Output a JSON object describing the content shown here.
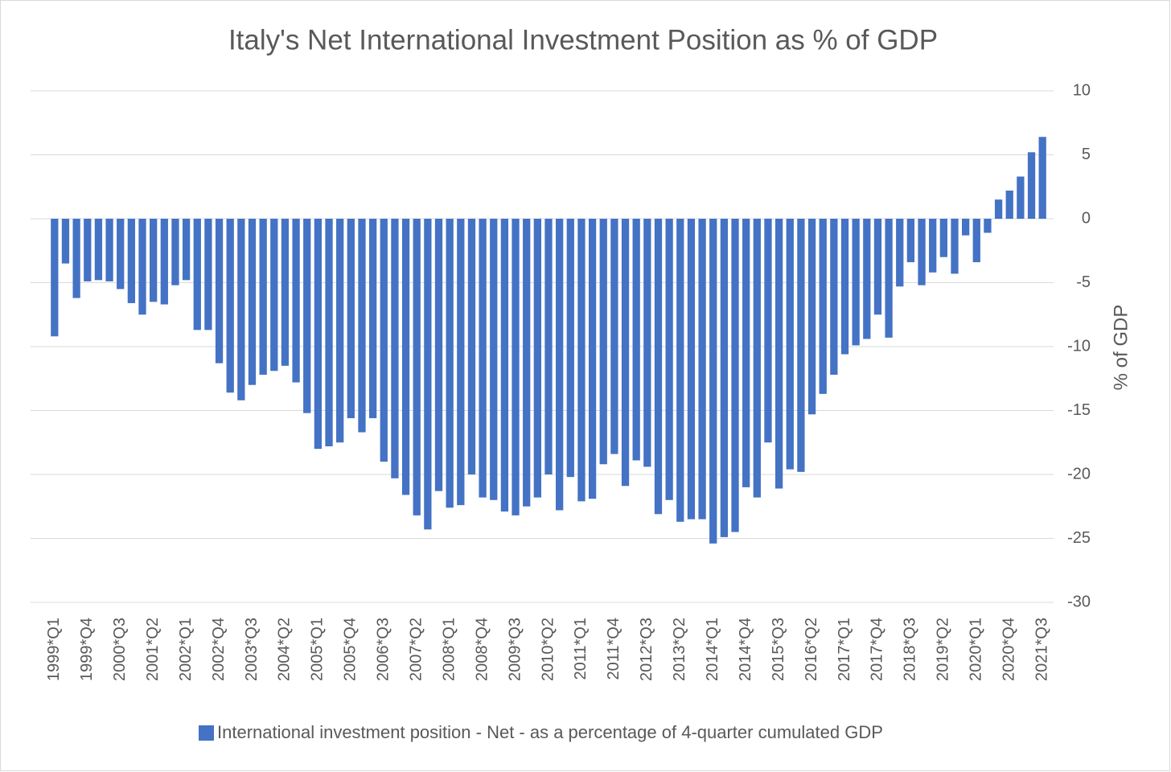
{
  "chart_data": {
    "type": "bar",
    "title": "Italy's Net International Investment Position as % of GDP",
    "y_label": "% of GDP",
    "legend": "International investment position - Net - as a percentage of 4-quarter cumulated GDP",
    "color": "#4472c4",
    "grid": true,
    "ylim": [
      -30,
      10
    ],
    "yticks": [
      -30,
      -25,
      -20,
      -15,
      -10,
      -5,
      0,
      5,
      10
    ],
    "categories": [
      "1999*Q1",
      null,
      null,
      "1999*Q4",
      null,
      null,
      "2000*Q3",
      null,
      null,
      "2001*Q2",
      null,
      null,
      "2002*Q1",
      null,
      null,
      "2002*Q4",
      null,
      null,
      "2003*Q3",
      null,
      null,
      "2004*Q2",
      null,
      null,
      "2005*Q1",
      null,
      null,
      "2005*Q4",
      null,
      null,
      "2006*Q3",
      null,
      null,
      "2007*Q2",
      null,
      null,
      "2008*Q1",
      null,
      null,
      "2008*Q4",
      null,
      null,
      "2009*Q3",
      null,
      null,
      "2010*Q2",
      null,
      null,
      "2011*Q1",
      null,
      null,
      "2011*Q4",
      null,
      null,
      "2012*Q3",
      null,
      null,
      "2013*Q2",
      null,
      null,
      "2014*Q1",
      null,
      null,
      "2014*Q4",
      null,
      null,
      "2015*Q3",
      null,
      null,
      "2016*Q2",
      null,
      null,
      "2017*Q1",
      null,
      null,
      "2017*Q4",
      null,
      null,
      "2018*Q3",
      null,
      null,
      "2019*Q2",
      null,
      null,
      "2020*Q1",
      null,
      null,
      "2020*Q4",
      null,
      null,
      "2021*Q3"
    ],
    "values": [
      -9.2,
      -3.5,
      -6.2,
      -4.9,
      -4.8,
      -4.9,
      -5.5,
      -6.6,
      -7.5,
      -6.5,
      -6.7,
      -5.2,
      -4.8,
      -8.7,
      -8.7,
      -11.3,
      -13.6,
      -14.2,
      -13.0,
      -12.2,
      -11.9,
      -11.5,
      -12.8,
      -15.2,
      -18.0,
      -17.8,
      -17.5,
      -15.6,
      -16.7,
      -15.6,
      -19.0,
      -20.3,
      -21.6,
      -23.2,
      -24.3,
      -21.3,
      -22.6,
      -22.4,
      -20.0,
      -21.8,
      -22.0,
      -22.9,
      -23.2,
      -22.5,
      -21.8,
      -20.0,
      -22.8,
      -20.2,
      -22.1,
      -21.9,
      -19.2,
      -18.4,
      -20.9,
      -18.9,
      -19.4,
      -23.1,
      -22.0,
      -23.7,
      -23.5,
      -23.5,
      -25.4,
      -24.9,
      -24.5,
      -21.0,
      -21.8,
      -17.5,
      -21.1,
      -19.6,
      -19.8,
      -15.3,
      -13.7,
      -12.2,
      -10.6,
      -9.9,
      -9.4,
      -7.5,
      -9.3,
      -5.3,
      -3.4,
      -5.2,
      -4.2,
      -3.0,
      -4.3,
      -1.3,
      -3.4,
      -1.1,
      1.5,
      2.2,
      3.3,
      5.2,
      6.4
    ]
  }
}
